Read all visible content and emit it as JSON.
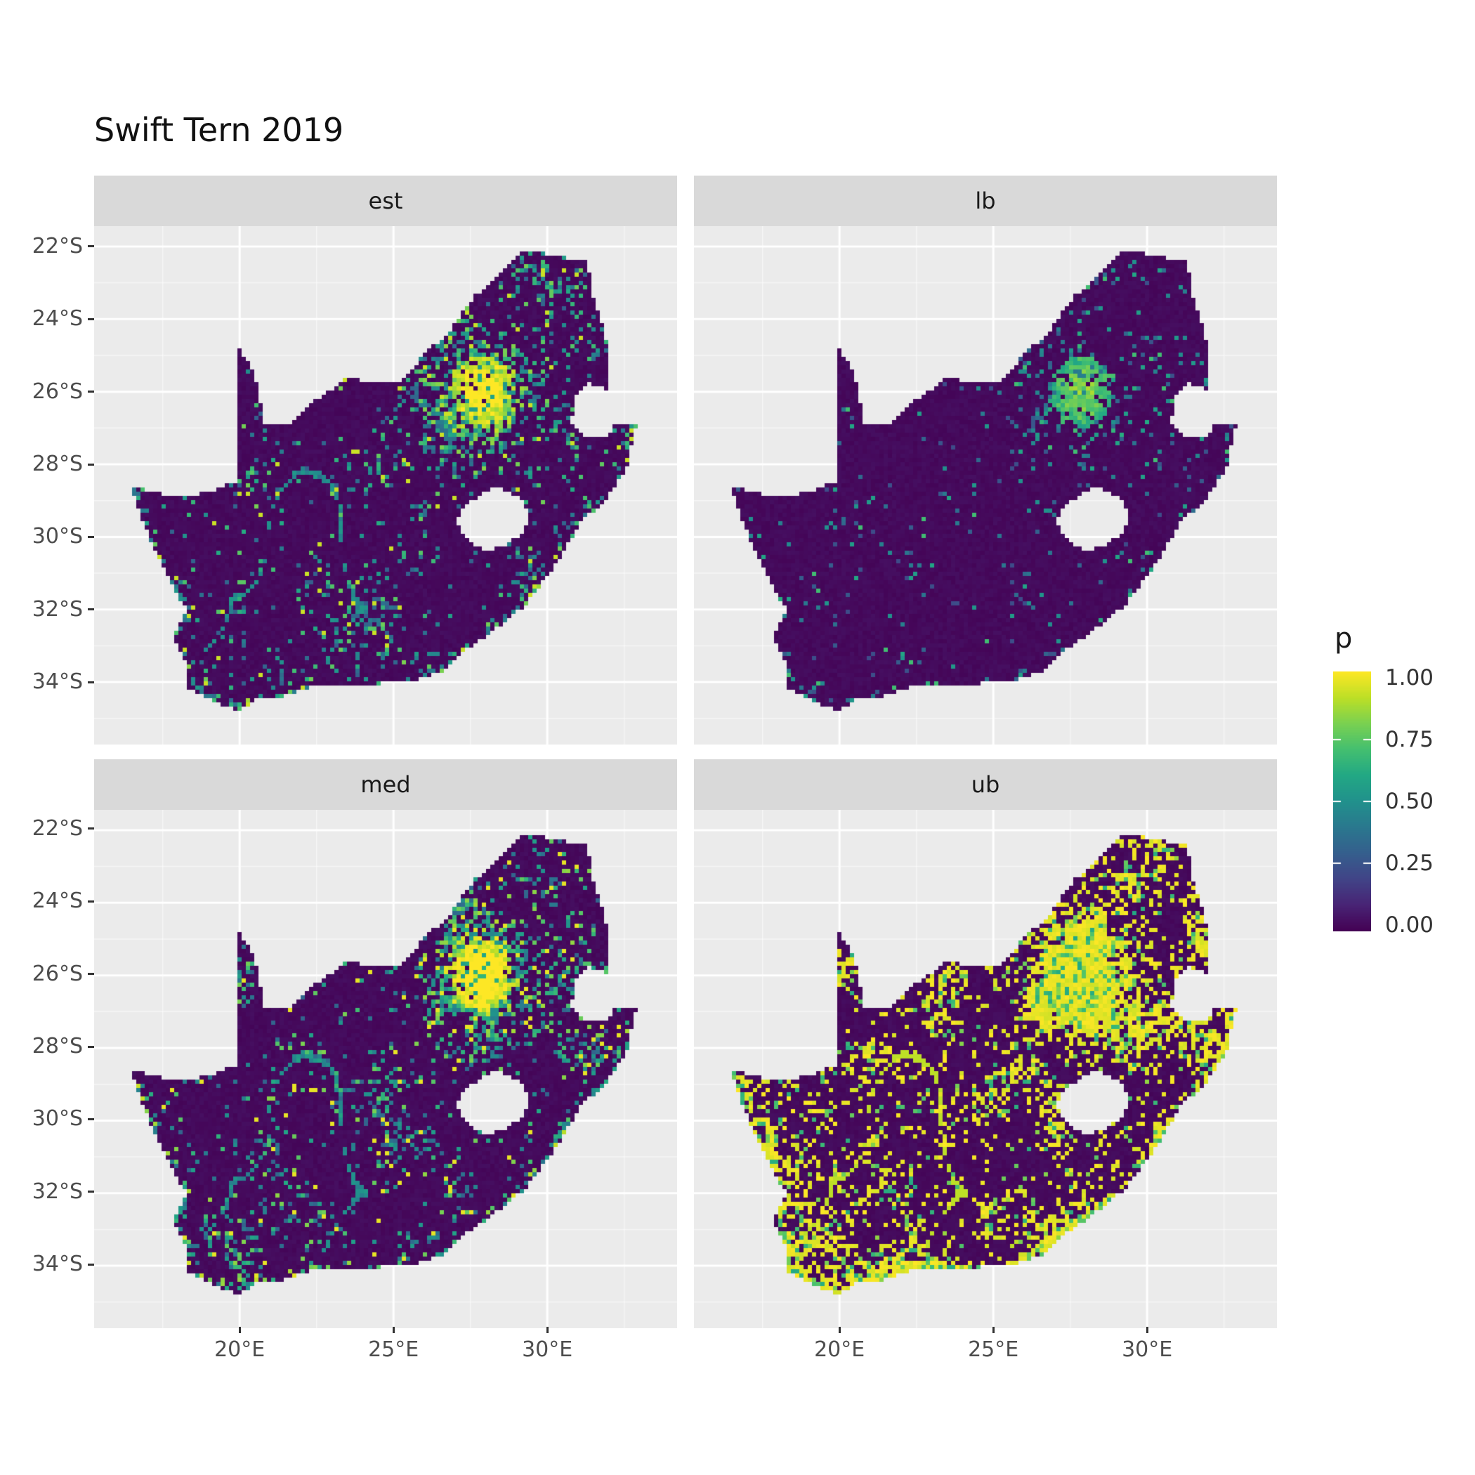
{
  "title": "Swift Tern 2019",
  "facets": [
    {
      "label": "est"
    },
    {
      "label": "lb"
    },
    {
      "label": "med"
    },
    {
      "label": "ub"
    }
  ],
  "axes": {
    "x": {
      "tick_labels": [
        "20°E",
        "25°E",
        "30°E"
      ],
      "tick_values": [
        20,
        25,
        30
      ]
    },
    "y": {
      "tick_labels": [
        "22°S",
        "24°S",
        "26°S",
        "28°S",
        "30°S",
        "32°S",
        "34°S"
      ],
      "tick_values": [
        -22,
        -24,
        -26,
        -28,
        -30,
        -32,
        -34
      ]
    }
  },
  "legend": {
    "title": "p",
    "tick_labels": [
      "1.00",
      "0.75",
      "0.50",
      "0.25",
      "0.00"
    ],
    "tick_values": [
      1.0,
      0.75,
      0.5,
      0.25,
      0.0
    ]
  },
  "colors": {
    "panel_background": "#EBEBEB",
    "strip_background": "#D9D9D9",
    "grid_major": "#FFFFFF",
    "grid_minor": "#FFFFFF",
    "axis_text": "#4D4D4D",
    "strip_text": "#1A1A1A",
    "tick_mark": "#333333",
    "viridis": [
      [
        0.0,
        "#440154"
      ],
      [
        0.1,
        "#482475"
      ],
      [
        0.2,
        "#414487"
      ],
      [
        0.3,
        "#355f8d"
      ],
      [
        0.4,
        "#2a788e"
      ],
      [
        0.5,
        "#21918c"
      ],
      [
        0.6,
        "#22a884"
      ],
      [
        0.7,
        "#44bf70"
      ],
      [
        0.8,
        "#7ad151"
      ],
      [
        0.9,
        "#bddf26"
      ],
      [
        1.0,
        "#fde725"
      ]
    ]
  },
  "chart_data": {
    "type": "heatmap",
    "title": "Swift Tern 2019",
    "facet_levels": [
      "est",
      "lb",
      "med",
      "ub"
    ],
    "value_variable": "p",
    "value_range": [
      0,
      1
    ],
    "legend_breaks": [
      0.0,
      0.25,
      0.5,
      0.75,
      1.0
    ],
    "x_axis_range_lon": [
      15.27,
      34.22
    ],
    "y_axis_range_lat": [
      -35.72,
      -21.44
    ],
    "x_breaks_lon": [
      20,
      25,
      30
    ],
    "y_breaks_lat": [
      -22,
      -24,
      -26,
      -28,
      -30,
      -32,
      -34
    ],
    "grid": true,
    "legend_position": "right",
    "region": "South Africa raster (Lesotho excluded)",
    "hotspot_center_lonlat": [
      27.9,
      -26.0
    ],
    "secondary_hotspot_lonlat": [
      26.55,
      -26.85
    ],
    "outline_lonlat": [
      [
        16.45,
        -28.6
      ],
      [
        17.2,
        -28.78
      ],
      [
        18.2,
        -28.9
      ],
      [
        19.2,
        -28.72
      ],
      [
        19.98,
        -28.42
      ],
      [
        19.98,
        -24.77
      ],
      [
        20.35,
        -25.3
      ],
      [
        20.65,
        -26.0
      ],
      [
        20.75,
        -26.85
      ],
      [
        21.7,
        -26.85
      ],
      [
        22.3,
        -26.35
      ],
      [
        22.9,
        -26.0
      ],
      [
        23.45,
        -25.6
      ],
      [
        24.2,
        -25.75
      ],
      [
        25.1,
        -25.75
      ],
      [
        25.6,
        -25.45
      ],
      [
        25.95,
        -24.95
      ],
      [
        26.5,
        -24.6
      ],
      [
        26.9,
        -24.25
      ],
      [
        27.6,
        -23.4
      ],
      [
        28.2,
        -22.95
      ],
      [
        29.1,
        -22.2
      ],
      [
        29.7,
        -22.15
      ],
      [
        30.5,
        -22.3
      ],
      [
        31.3,
        -22.4
      ],
      [
        31.55,
        -23.6
      ],
      [
        31.9,
        -24.4
      ],
      [
        32.0,
        -25.3
      ],
      [
        32.0,
        -25.65
      ],
      [
        31.95,
        -25.95
      ],
      [
        31.3,
        -25.75
      ],
      [
        30.85,
        -26.25
      ],
      [
        30.8,
        -26.85
      ],
      [
        31.15,
        -27.2
      ],
      [
        31.95,
        -27.3
      ],
      [
        32.15,
        -26.9
      ],
      [
        32.9,
        -26.86
      ],
      [
        32.55,
        -28.2
      ],
      [
        31.9,
        -28.95
      ],
      [
        31.05,
        -29.65
      ],
      [
        30.35,
        -30.65
      ],
      [
        29.95,
        -31.15
      ],
      [
        29.2,
        -31.95
      ],
      [
        28.3,
        -32.55
      ],
      [
        27.4,
        -33.1
      ],
      [
        26.5,
        -33.75
      ],
      [
        25.65,
        -33.95
      ],
      [
        25.0,
        -34.0
      ],
      [
        24.0,
        -34.1
      ],
      [
        23.0,
        -34.1
      ],
      [
        22.2,
        -34.15
      ],
      [
        21.3,
        -34.42
      ],
      [
        20.5,
        -34.45
      ],
      [
        20.0,
        -34.82
      ],
      [
        19.3,
        -34.6
      ],
      [
        18.8,
        -34.35
      ],
      [
        18.35,
        -34.2
      ],
      [
        18.3,
        -33.5
      ],
      [
        17.85,
        -32.8
      ],
      [
        18.25,
        -32.0
      ],
      [
        17.3,
        -30.5
      ],
      [
        16.9,
        -29.65
      ]
    ],
    "lesotho_hole_lonlat": [
      [
        27.75,
        -28.9
      ],
      [
        28.4,
        -28.6
      ],
      [
        29.1,
        -28.9
      ],
      [
        29.45,
        -29.35
      ],
      [
        29.15,
        -29.95
      ],
      [
        28.55,
        -30.25
      ],
      [
        27.95,
        -30.4
      ],
      [
        27.45,
        -30.1
      ],
      [
        27.05,
        -29.6
      ],
      [
        27.3,
        -29.1
      ]
    ],
    "panels": [
      {
        "name": "est",
        "seed": 11,
        "base": 0.045,
        "patch": 0.3,
        "hot": 0.85,
        "hot2": 0.45,
        "coast": 0.35,
        "ne": 0.15,
        "binary": false,
        "ridge": true,
        "vmul": 1.0
      },
      {
        "name": "lb",
        "seed": 22,
        "base": 0.018,
        "patch": 0.1,
        "hot": 0.32,
        "hot2": 0.12,
        "coast": 0.1,
        "ne": 0.07,
        "binary": false,
        "ridge": false,
        "vmul": 0.75
      },
      {
        "name": "med",
        "seed": 33,
        "base": 0.055,
        "patch": 0.36,
        "hot": 0.95,
        "hot2": 0.5,
        "coast": 0.42,
        "ne": 0.17,
        "binary": false,
        "ridge": true,
        "vmul": 1.05
      },
      {
        "name": "ub",
        "seed": 44,
        "base": 0.1,
        "patch": 0.6,
        "hot": 1.3,
        "hot2": 0.7,
        "coast": 0.6,
        "ne": 0.28,
        "binary": true,
        "ridge": true,
        "vmul": 1.0
      }
    ]
  }
}
